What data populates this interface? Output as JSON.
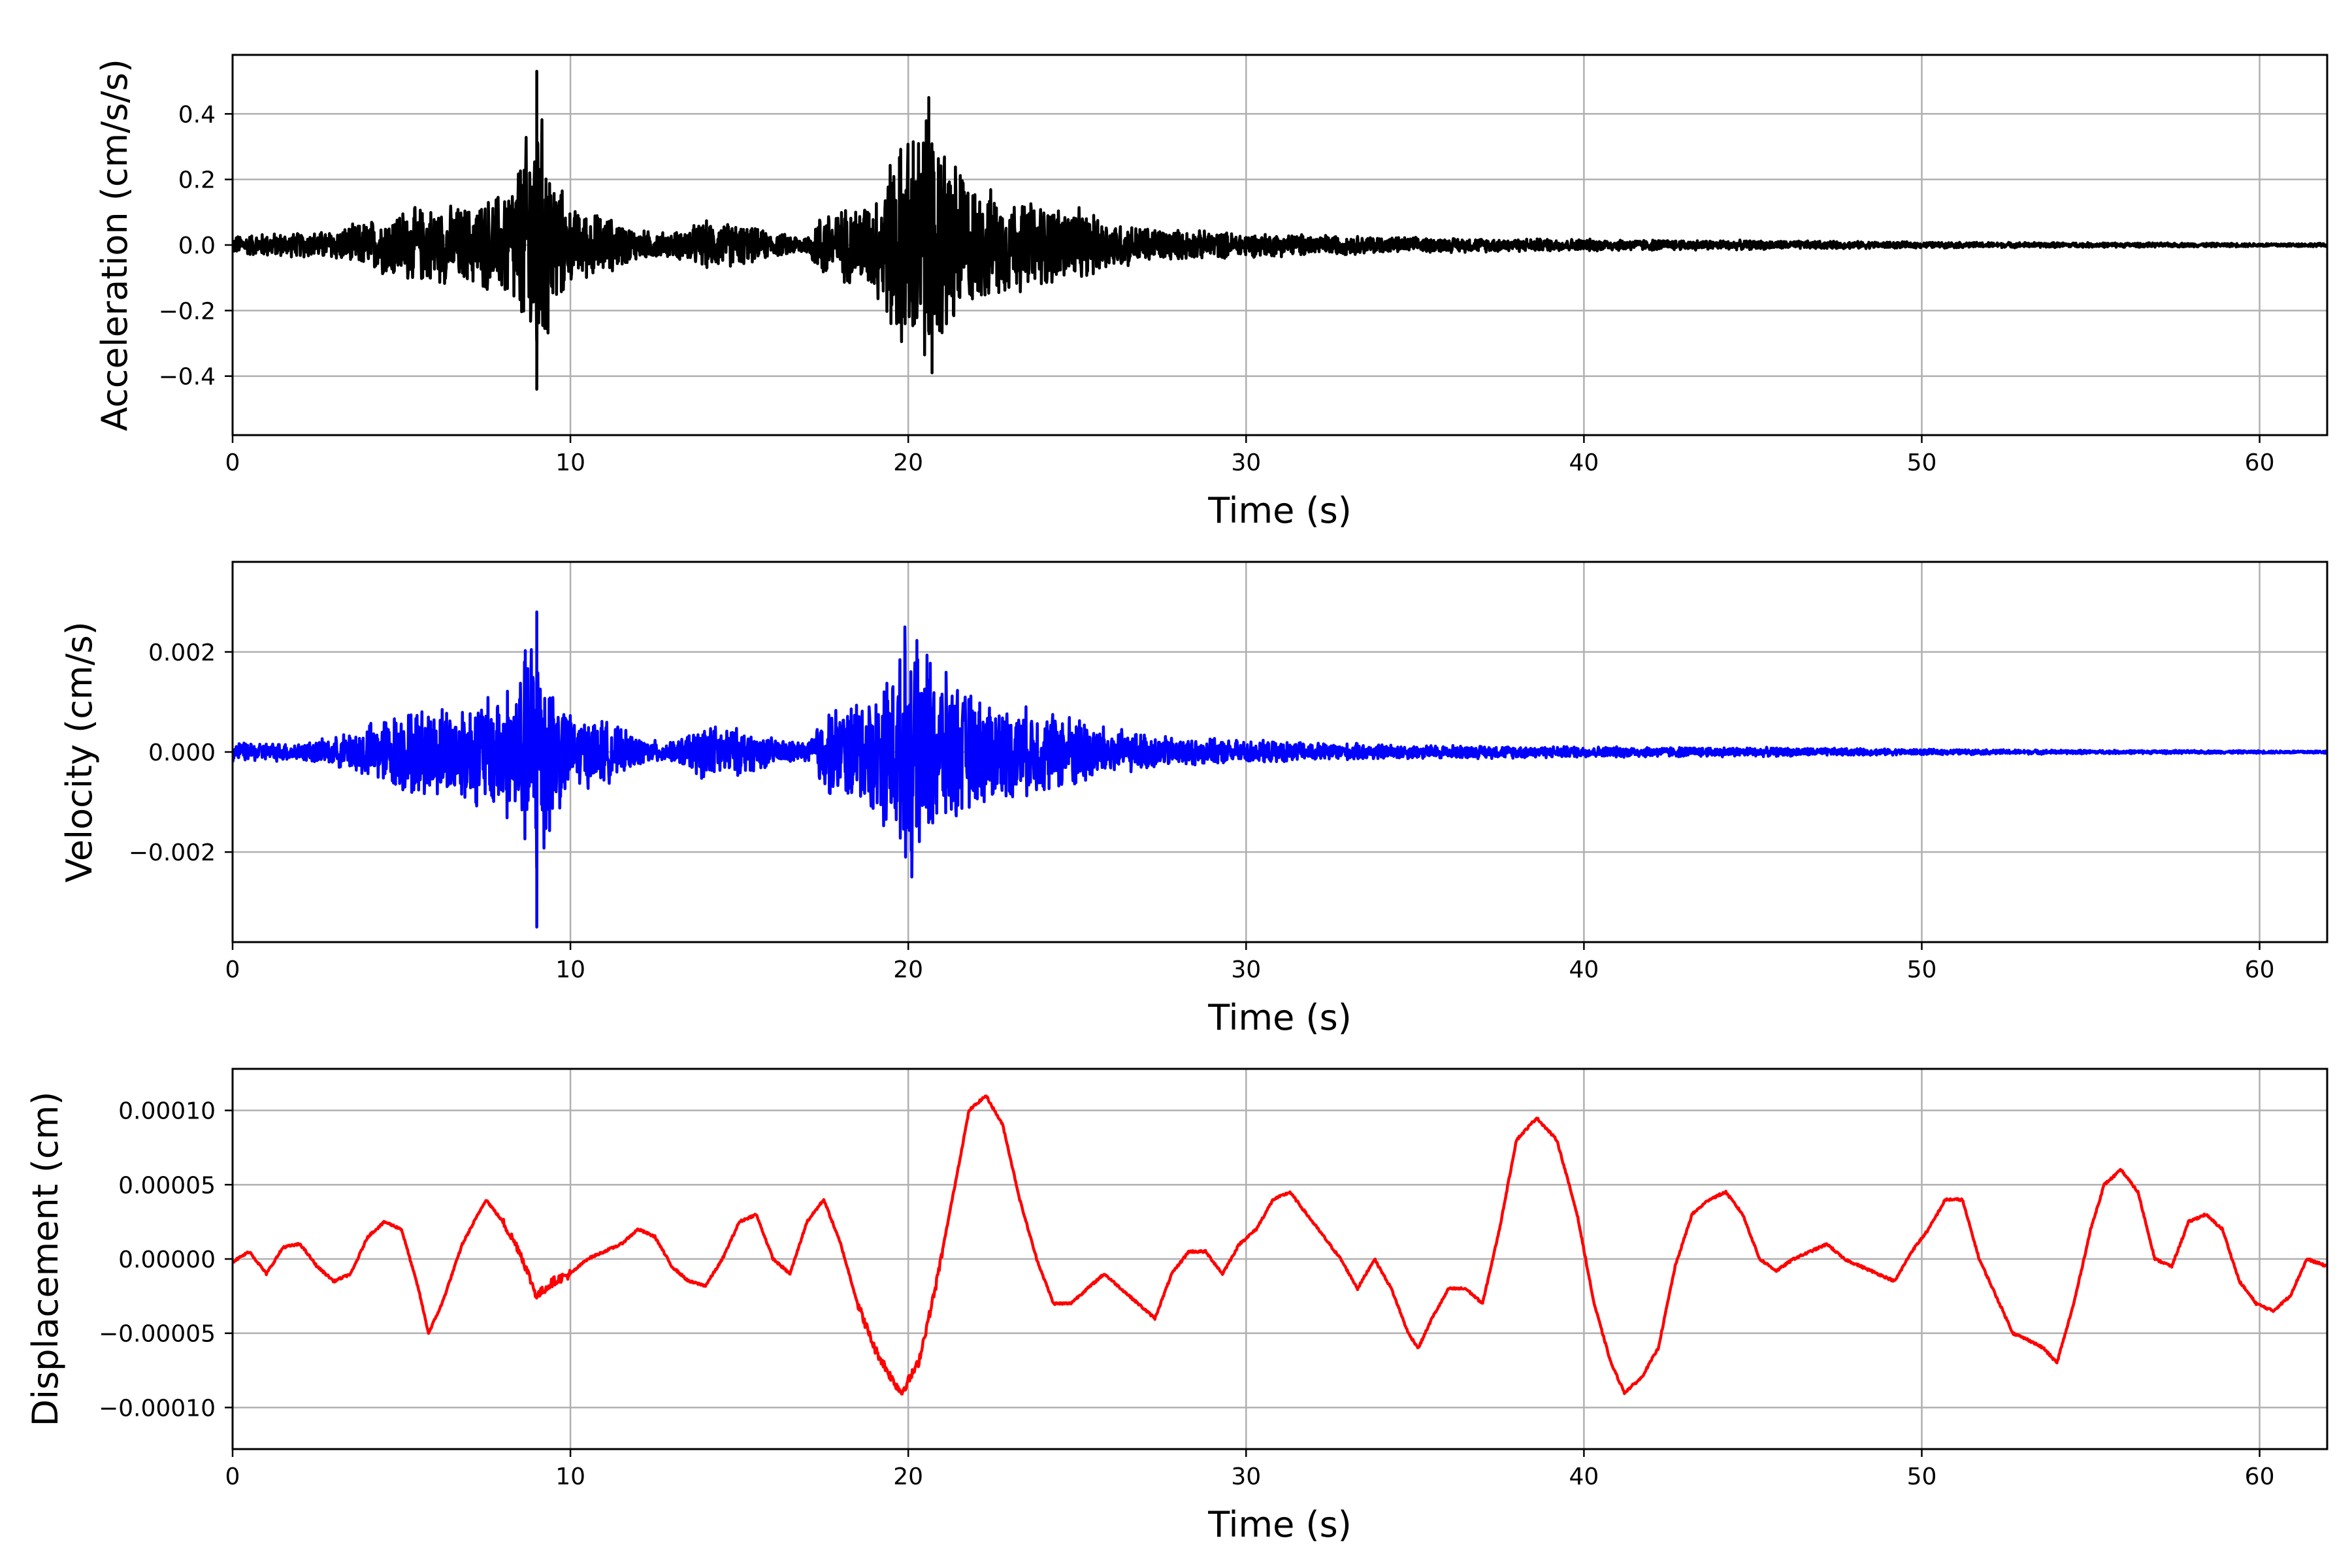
{
  "chart_data": [
    {
      "type": "line",
      "xlabel": "Time (s)",
      "ylabel": "Acceleration (cm/s/s)",
      "xlim": [
        0,
        62
      ],
      "ylim": [
        -0.58,
        0.58
      ],
      "xticks": [
        0,
        10,
        20,
        30,
        40,
        50,
        60
      ],
      "xtick_labels": [
        "0",
        "10",
        "20",
        "30",
        "40",
        "50",
        "60"
      ],
      "yticks": [
        -0.4,
        -0.2,
        0.0,
        0.2,
        0.4
      ],
      "ytick_labels": [
        "−0.4",
        "−0.2",
        "0.0",
        "0.2",
        "0.4"
      ],
      "grid": true,
      "color": "#000000",
      "series_envelope": {
        "t": [
          0,
          1,
          2,
          3,
          4,
          5,
          6,
          7,
          8,
          8.5,
          9,
          9.5,
          10,
          11,
          12,
          13,
          14,
          15,
          16,
          17,
          17.5,
          18,
          19,
          19.5,
          20,
          20.5,
          21,
          22,
          23,
          24,
          25,
          26,
          27,
          28,
          30,
          32,
          35,
          40,
          45,
          50,
          55,
          60,
          62
        ],
        "amplitude": [
          0.03,
          0.04,
          0.04,
          0.05,
          0.08,
          0.12,
          0.13,
          0.13,
          0.18,
          0.28,
          0.5,
          0.25,
          0.12,
          0.1,
          0.05,
          0.04,
          0.08,
          0.07,
          0.04,
          0.03,
          0.12,
          0.12,
          0.16,
          0.3,
          0.38,
          0.42,
          0.35,
          0.2,
          0.16,
          0.14,
          0.12,
          0.08,
          0.06,
          0.05,
          0.04,
          0.035,
          0.025,
          0.02,
          0.015,
          0.01,
          0.008,
          0.006,
          0.006
        ]
      },
      "peaks": [
        [
          9.0,
          0.53
        ],
        [
          9.0,
          -0.44
        ],
        [
          20.6,
          0.45
        ],
        [
          20.7,
          -0.39
        ]
      ]
    },
    {
      "type": "line",
      "xlabel": "Time (s)",
      "ylabel": "Velocity (cm/s)",
      "xlim": [
        0,
        62
      ],
      "ylim": [
        -0.0038,
        0.0038
      ],
      "xticks": [
        0,
        10,
        20,
        30,
        40,
        50,
        60
      ],
      "xtick_labels": [
        "0",
        "10",
        "20",
        "30",
        "40",
        "50",
        "60"
      ],
      "yticks": [
        -0.002,
        0.0,
        0.002
      ],
      "ytick_labels": [
        "−0.002",
        "0.000",
        "0.002"
      ],
      "grid": true,
      "color": "#0000ff",
      "series_envelope": {
        "t": [
          0,
          1,
          2,
          3,
          4,
          5,
          6,
          7,
          8,
          8.5,
          9,
          9.5,
          10,
          11,
          12,
          13,
          14,
          15,
          16,
          17,
          17.5,
          18,
          19,
          19.5,
          20,
          20.5,
          21,
          22,
          23,
          24,
          25,
          26,
          27,
          28,
          30,
          32,
          35,
          40,
          45,
          50,
          55,
          60,
          62
        ],
        "amplitude": [
          0.0002,
          0.0002,
          0.0002,
          0.0003,
          0.0006,
          0.0009,
          0.001,
          0.0011,
          0.0014,
          0.0018,
          0.0031,
          0.0015,
          0.0008,
          0.0007,
          0.0003,
          0.0002,
          0.0006,
          0.0005,
          0.0003,
          0.0002,
          0.0009,
          0.001,
          0.0013,
          0.0018,
          0.0023,
          0.0023,
          0.0017,
          0.0012,
          0.001,
          0.0009,
          0.0008,
          0.0005,
          0.0004,
          0.0003,
          0.00025,
          0.0002,
          0.00015,
          0.00012,
          0.0001,
          6e-05,
          4e-05,
          3e-05,
          3e-05
        ]
      },
      "peaks": [
        [
          9.0,
          0.0028
        ],
        [
          9.0,
          -0.0035
        ],
        [
          19.9,
          0.0025
        ],
        [
          20.1,
          -0.0025
        ]
      ]
    },
    {
      "type": "line",
      "xlabel": "Time (s)",
      "ylabel": "Displacement (cm)",
      "xlim": [
        0,
        62
      ],
      "ylim": [
        -0.000128,
        0.000128
      ],
      "xticks": [
        0,
        10,
        20,
        30,
        40,
        50,
        60
      ],
      "xtick_labels": [
        "0",
        "10",
        "20",
        "30",
        "40",
        "50",
        "60"
      ],
      "yticks": [
        -0.0001,
        -5e-05,
        0.0,
        5e-05,
        0.0001
      ],
      "ytick_labels": [
        "−0.00010",
        "−0.00005",
        "0.00000",
        "0.00005",
        "0.00010"
      ],
      "grid": true,
      "color": "#ff0000",
      "series": [
        {
          "x": [
            0,
            0.5,
            1.0,
            1.5,
            2.0,
            2.5,
            3.0,
            3.5,
            4.0,
            4.5,
            5.0,
            5.5,
            5.8,
            6.2,
            6.8,
            7.5,
            8.0,
            8.5,
            9.0,
            9.5,
            10.0,
            10.5,
            11.0,
            11.5,
            12.0,
            12.5,
            13.0,
            13.5,
            14.0,
            14.5,
            15.0,
            15.5,
            16.0,
            16.5,
            17.0,
            17.5,
            18.0,
            18.5,
            19.0,
            19.5,
            19.8,
            20.3,
            20.8,
            21.3,
            21.8,
            22.3,
            22.8,
            23.3,
            23.8,
            24.3,
            24.8,
            25.3,
            25.8,
            26.3,
            26.8,
            27.3,
            27.8,
            28.3,
            28.8,
            29.3,
            29.8,
            30.3,
            30.8,
            31.3,
            31.8,
            32.3,
            32.8,
            33.3,
            33.8,
            34.3,
            34.8,
            35.1,
            35.5,
            36.0,
            36.5,
            37.0,
            37.5,
            38.0,
            38.6,
            39.2,
            39.8,
            40.3,
            40.8,
            41.2,
            41.7,
            42.2,
            42.7,
            43.2,
            43.7,
            44.2,
            44.7,
            45.2,
            45.7,
            46.2,
            46.7,
            47.2,
            47.7,
            48.2,
            48.7,
            49.2,
            49.7,
            50.2,
            50.7,
            51.2,
            51.7,
            52.2,
            52.7,
            53.2,
            53.6,
            54.0,
            54.5,
            55.0,
            55.4,
            55.9,
            56.4,
            56.9,
            57.4,
            57.9,
            58.4,
            58.9,
            59.4,
            59.9,
            60.4,
            60.9,
            61.4,
            62.0
          ],
          "y": [
            -2e-06,
            5e-06,
            -1e-05,
            8e-06,
            1e-05,
            -5e-06,
            -1.5e-05,
            -1e-05,
            1.5e-05,
            2.5e-05,
            2e-05,
            -2e-05,
            -5e-05,
            -3e-05,
            1e-05,
            4e-05,
            2.5e-05,
            5e-06,
            -2.5e-05,
            -1.5e-05,
            -1e-05,
            0.0,
            5e-06,
            1e-05,
            2e-05,
            1.5e-05,
            -5e-06,
            -1.5e-05,
            -1.8e-05,
            0.0,
            2.5e-05,
            3e-05,
            0.0,
            -1e-05,
            2.5e-05,
            4e-05,
            1e-05,
            -3e-05,
            -6e-05,
            -8e-05,
            -9e-05,
            -7e-05,
            -2e-05,
            4e-05,
            0.0001,
            0.00011,
            9e-05,
            4e-05,
            0.0,
            -3e-05,
            -3e-05,
            -2e-05,
            -1e-05,
            -2e-05,
            -3e-05,
            -4e-05,
            -1e-05,
            5e-06,
            5e-06,
            -1e-05,
            1e-05,
            2e-05,
            4e-05,
            4.5e-05,
            3e-05,
            1.5e-05,
            0.0,
            -2e-05,
            0.0,
            -2e-05,
            -5e-05,
            -6e-05,
            -4e-05,
            -2e-05,
            -2e-05,
            -3e-05,
            2e-05,
            8e-05,
            9.5e-05,
            8e-05,
            3e-05,
            -3e-05,
            -7e-05,
            -9e-05,
            -8e-05,
            -6e-05,
            -5e-06,
            3e-05,
            4e-05,
            4.5e-05,
            3e-05,
            0.0,
            -8e-06,
            0.0,
            5e-06,
            1e-05,
            0.0,
            -5e-06,
            -1e-05,
            -1.5e-05,
            5e-06,
            2e-05,
            4e-05,
            4e-05,
            0.0,
            -2.5e-05,
            -5e-05,
            -5.5e-05,
            -6e-05,
            -7e-05,
            -3e-05,
            2e-05,
            5e-05,
            6e-05,
            4.5e-05,
            0.0,
            -5e-06,
            2.5e-05,
            3e-05,
            2e-05,
            -1.5e-05,
            -3e-05,
            -3.5e-05,
            -2.5e-05,
            0.0,
            -5e-06
          ]
        }
      ]
    }
  ]
}
